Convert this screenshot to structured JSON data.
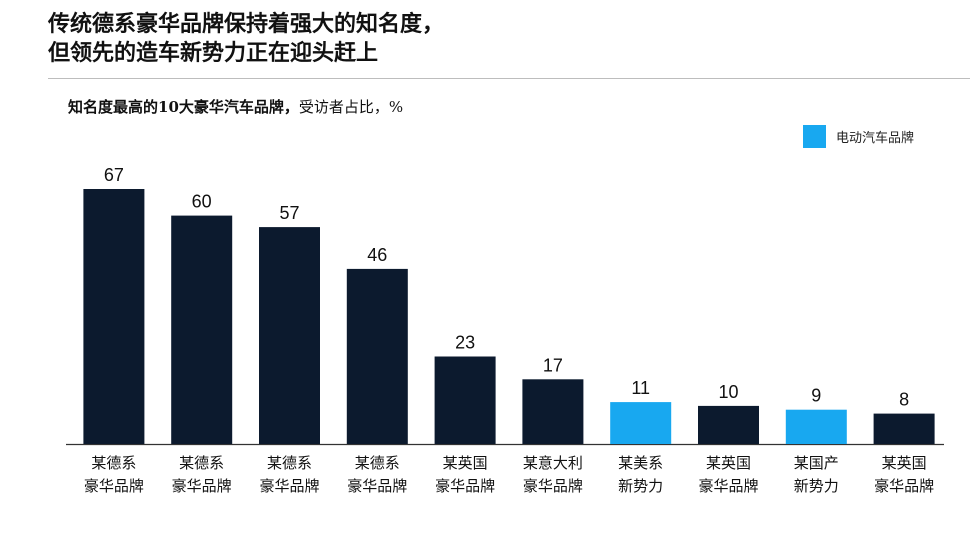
{
  "headline": {
    "line1": "传统德系豪华品牌保持着强大的知名度，",
    "line2": "但领先的造车新势力正在迎头赶上"
  },
  "subtitle": {
    "main": "知名度最高的10大豪华汽车品牌，",
    "unit": "受访者占比，%"
  },
  "legend": {
    "label": "电动汽车品牌",
    "color": "#18a8f0"
  },
  "colors": {
    "default_bar": "#0c1a2e",
    "ev_bar": "#18a8f0",
    "axis": "#333333"
  },
  "chart_data": {
    "type": "bar",
    "title": "知名度最高的10大豪华汽车品牌，受访者占比，%",
    "categories": [
      [
        "某德系",
        "豪华品牌"
      ],
      [
        "某德系",
        "豪华品牌"
      ],
      [
        "某德系",
        "豪华品牌"
      ],
      [
        "某德系",
        "豪华品牌"
      ],
      [
        "某英国",
        "豪华品牌"
      ],
      [
        "某意大利",
        "豪华品牌"
      ],
      [
        "某美系",
        "新势力"
      ],
      [
        "某英国",
        "豪华品牌"
      ],
      [
        "某国产",
        "新势力"
      ],
      [
        "某英国",
        "豪华品牌"
      ]
    ],
    "values": [
      67,
      60,
      57,
      46,
      23,
      17,
      11,
      10,
      9,
      8
    ],
    "electric": [
      false,
      false,
      false,
      false,
      false,
      false,
      true,
      false,
      true,
      false
    ],
    "ylim": [
      0,
      67
    ],
    "grid": false,
    "legend_position": "top-right"
  }
}
